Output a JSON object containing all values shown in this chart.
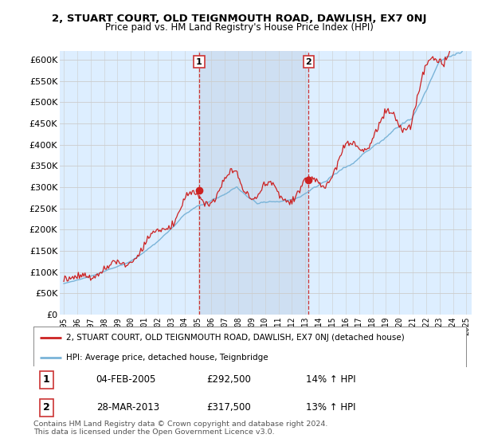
{
  "title1": "2, STUART COURT, OLD TEIGNMOUTH ROAD, DAWLISH, EX7 0NJ",
  "title2": "Price paid vs. HM Land Registry's House Price Index (HPI)",
  "bg_color": "#ddeeff",
  "shade_color": "#ccddf0",
  "grid_color": "#cccccc",
  "sale1_date": 2005.08,
  "sale1_price": 292500,
  "sale2_date": 2013.23,
  "sale2_price": 317500,
  "legend_line1": "2, STUART COURT, OLD TEIGNMOUTH ROAD, DAWLISH, EX7 0NJ (detached house)",
  "legend_line2": "HPI: Average price, detached house, Teignbridge",
  "table_row1": [
    "1",
    "04-FEB-2005",
    "£292,500",
    "14% ↑ HPI"
  ],
  "table_row2": [
    "2",
    "28-MAR-2013",
    "£317,500",
    "13% ↑ HPI"
  ],
  "footnote": "Contains HM Land Registry data © Crown copyright and database right 2024.\nThis data is licensed under the Open Government Licence v3.0.",
  "hpi_color": "#7ab4d8",
  "price_color": "#cc2222",
  "dashed_color": "#cc3333",
  "ylim_min": 0,
  "ylim_max": 620000,
  "ytick_step": 50000
}
